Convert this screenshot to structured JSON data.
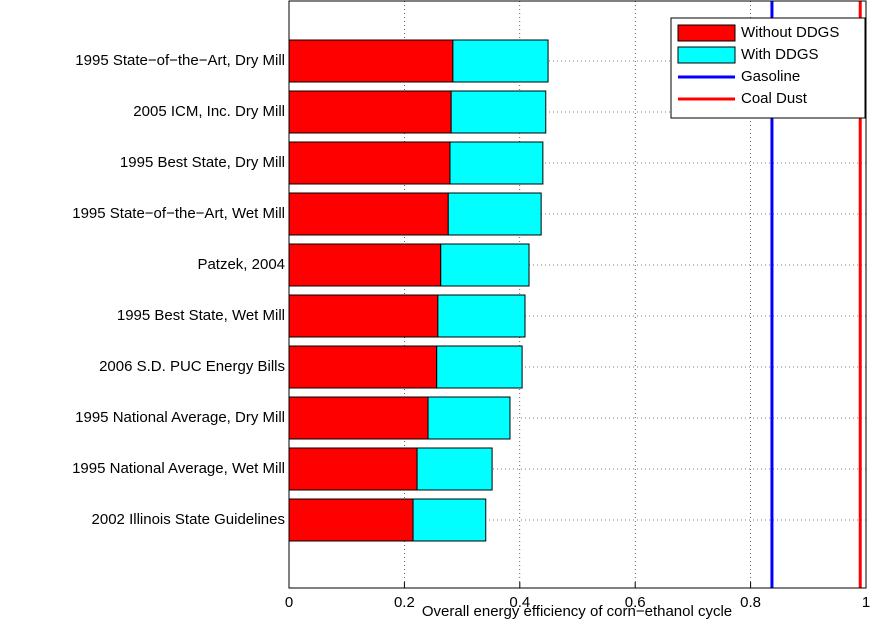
{
  "chart_data": {
    "type": "stacked-barh",
    "xlabel": "Overall energy efficiency of corn−ethanol cycle",
    "categories": [
      "1995 State−of−the−Art, Dry Mill",
      "2005 ICM, Inc. Dry Mill",
      "1995 Best State, Dry Mill",
      "1995 State−of−the−Art, Wet Mill",
      "Patzek, 2004",
      "1995 Best State, Wet Mill",
      "2006 S.D. PUC Energy Bills",
      "1995 National Average, Dry Mill",
      "1995 National Average, Wet Mill",
      "2002 Illinois State Guidelines"
    ],
    "series": [
      {
        "name": "Without DDGS",
        "color": "#ff0000",
        "values": [
          0.284,
          0.281,
          0.279,
          0.276,
          0.263,
          0.258,
          0.256,
          0.241,
          0.222,
          0.215
        ]
      },
      {
        "name": "With DDGS",
        "color": "#00ffff",
        "values": [
          0.165,
          0.164,
          0.161,
          0.161,
          0.153,
          0.151,
          0.148,
          0.142,
          0.13,
          0.126
        ]
      }
    ],
    "reference_lines": [
      {
        "name": "Gasoline",
        "color": "#0000ff",
        "value": 0.837
      },
      {
        "name": "Coal Dust",
        "color": "#ff0000",
        "value": 0.99
      }
    ],
    "xlim": [
      0,
      1
    ],
    "xticks": [
      0,
      0.2,
      0.4,
      0.6,
      0.8,
      1
    ],
    "grid": true,
    "legend": "upper-right"
  }
}
